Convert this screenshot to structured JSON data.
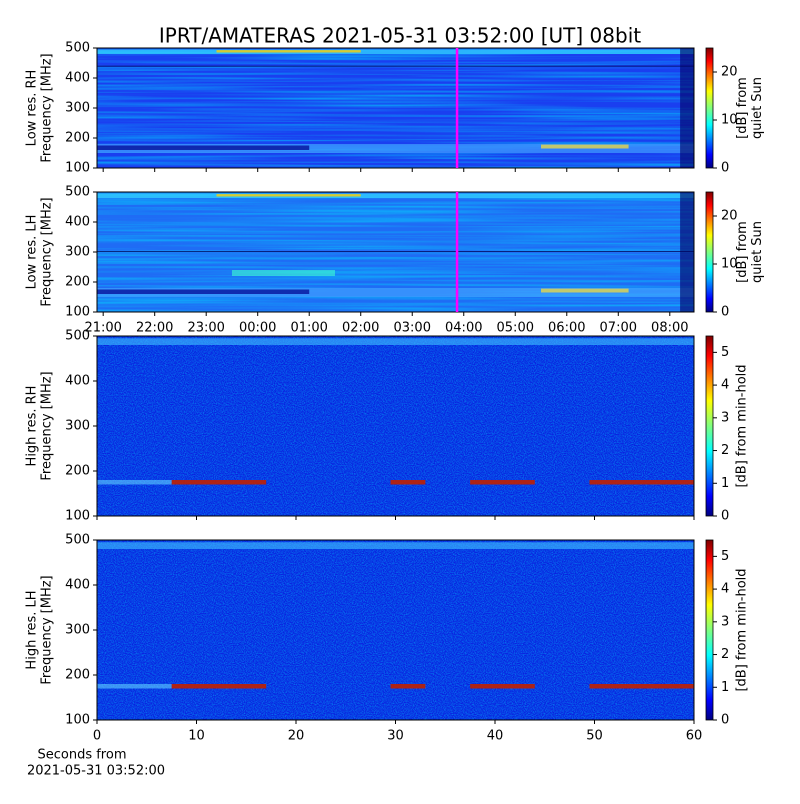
{
  "chart_data": [
    {
      "type": "heatmap",
      "title": "IPRT/AMATERAS 2021-05-31 03:52:00 [UT]   08bit",
      "ylabel": [
        "Low res. RH",
        "Frequency [MHz]"
      ],
      "ylim": [
        100,
        500
      ],
      "yticks": [
        100,
        200,
        300,
        400,
        500
      ],
      "xlim": [
        20.88,
        32.47
      ],
      "xticks": [
        21,
        22,
        23,
        24,
        25,
        26,
        27,
        28,
        29,
        30,
        31,
        32
      ],
      "marker_x": 27.87,
      "marker_color": "#ff00ff",
      "colorbar": {
        "label": [
          "[dB] from",
          "quiet Sun"
        ],
        "lim": [
          0,
          25
        ],
        "ticks": [
          0,
          10,
          20
        ]
      }
    },
    {
      "type": "heatmap",
      "ylabel": [
        "Low res. LH",
        "Frequency [MHz]"
      ],
      "ylim": [
        100,
        500
      ],
      "yticks": [
        100,
        200,
        300,
        400,
        500
      ],
      "xlim": [
        20.88,
        32.47
      ],
      "xticks": [
        {
          "value": 21,
          "label": "21:00"
        },
        {
          "value": 22,
          "label": "22:00"
        },
        {
          "value": 23,
          "label": "23:00"
        },
        {
          "value": 24,
          "label": "00:00"
        },
        {
          "value": 25,
          "label": "01:00"
        },
        {
          "value": 26,
          "label": "02:00"
        },
        {
          "value": 27,
          "label": "03:00"
        },
        {
          "value": 28,
          "label": "04:00"
        },
        {
          "value": 29,
          "label": "05:00"
        },
        {
          "value": 30,
          "label": "06:00"
        },
        {
          "value": 31,
          "label": "07:00"
        },
        {
          "value": 32,
          "label": "08:00"
        }
      ],
      "marker_x": 27.87,
      "marker_color": "#ff00ff",
      "colorbar": {
        "label": [
          "[dB] from",
          "quiet Sun"
        ],
        "lim": [
          0,
          25
        ],
        "ticks": [
          0,
          10,
          20
        ]
      }
    },
    {
      "type": "heatmap",
      "ylabel": [
        "High res. RH",
        "Frequency [MHz]"
      ],
      "ylim": [
        100,
        500
      ],
      "yticks": [
        100,
        200,
        300,
        400,
        500
      ],
      "xlim": [
        0,
        60
      ],
      "xticks": [
        0,
        10,
        20,
        30,
        40,
        50,
        60
      ],
      "colorbar": {
        "label": [
          "[dB] from min-hold"
        ],
        "lim": [
          0,
          5.5
        ],
        "ticks": [
          0,
          1,
          2,
          3,
          4,
          5
        ]
      }
    },
    {
      "type": "heatmap",
      "ylabel": [
        "High res. LH",
        "Frequency [MHz]"
      ],
      "ylim": [
        100,
        500
      ],
      "yticks": [
        100,
        200,
        300,
        400,
        500
      ],
      "xlim": [
        0,
        60
      ],
      "xticks": [
        0,
        10,
        20,
        30,
        40,
        50,
        60
      ],
      "xticklabels": true,
      "xlabel": [
        "Seconds from",
        "2021-05-31 03:52:00"
      ],
      "colorbar": {
        "label": [
          "[dB] from min-hold"
        ],
        "lim": [
          0,
          5.5
        ],
        "ticks": [
          0,
          1,
          2,
          3,
          4,
          5
        ]
      }
    }
  ]
}
